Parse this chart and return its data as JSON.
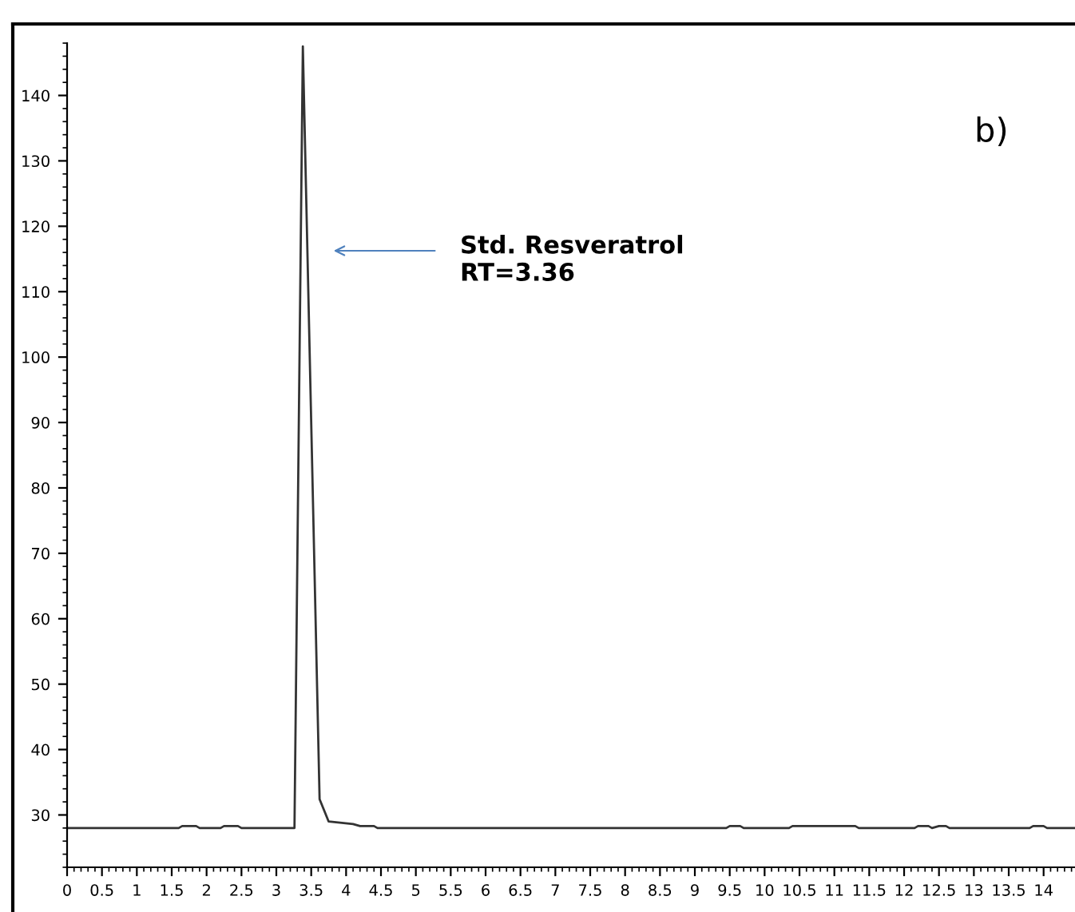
{
  "chart_data": {
    "type": "line",
    "x": [
      0,
      1.6,
      1.65,
      1.85,
      1.9,
      2.2,
      2.25,
      2.45,
      2.5,
      3.26,
      3.38,
      3.62,
      3.75,
      4.1,
      4.2,
      4.4,
      4.45,
      9.45,
      9.5,
      9.65,
      9.7,
      10.35,
      10.4,
      11.3,
      11.35,
      12.15,
      12.2,
      12.35,
      12.4,
      12.5,
      12.6,
      12.65,
      13.8,
      13.85,
      14.0,
      14.05,
      14.45
    ],
    "series": [
      {
        "color": "#333333",
        "values": [
          28,
          28,
          28.3,
          28.3,
          28,
          28,
          28.3,
          28.3,
          28,
          28,
          147.5,
          32.4,
          29,
          28.6,
          28.3,
          28.3,
          28,
          28,
          28.3,
          28.3,
          28,
          28,
          28.3,
          28.3,
          28,
          28,
          28.3,
          28.3,
          28,
          28.3,
          28.3,
          28,
          28,
          28.3,
          28.3,
          28,
          28
        ]
      }
    ],
    "xlim": [
      0,
      14.45
    ],
    "ylim": [
      22,
      148
    ],
    "xticks": [
      0,
      0.5,
      1,
      1.5,
      2,
      2.5,
      3,
      3.5,
      4,
      4.5,
      5,
      5.5,
      6,
      6.5,
      7,
      7.5,
      8,
      8.5,
      9,
      9.5,
      10,
      10.5,
      11,
      11.5,
      12,
      12.5,
      13,
      13.5,
      14
    ],
    "yticks": [
      30,
      40,
      50,
      60,
      70,
      80,
      90,
      100,
      110,
      120,
      130,
      140
    ],
    "grid": false,
    "legend": false,
    "marker": "none",
    "line_style": "solid",
    "annotations": [
      "Std. Resveratrol\nRT=3.36",
      "b)"
    ]
  }
}
